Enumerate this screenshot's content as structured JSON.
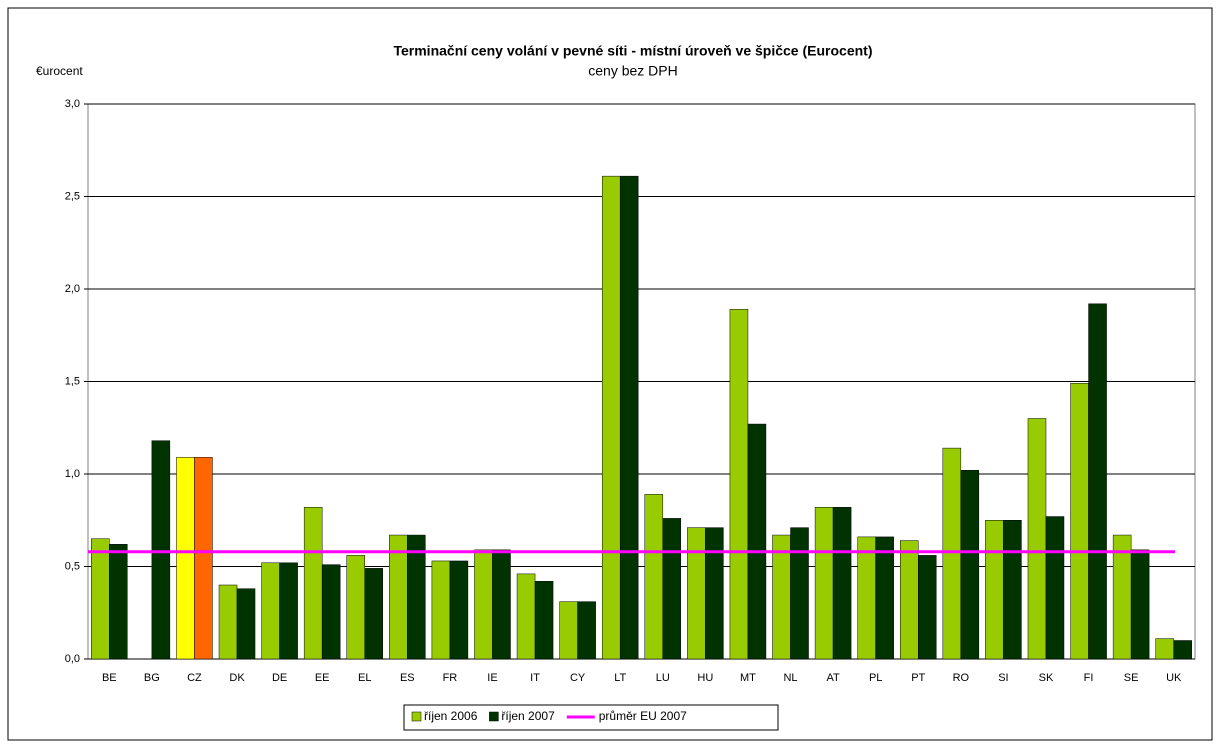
{
  "chart_data": {
    "type": "bar",
    "title": "Terminační ceny volání v pevné síti - místní úroveň ve špičce (Eurocent)",
    "subtitle": "ceny bez DPH",
    "y_label": "€urocent",
    "categories": [
      "BE",
      "BG",
      "CZ",
      "DK",
      "DE",
      "EE",
      "EL",
      "ES",
      "FR",
      "IE",
      "IT",
      "CY",
      "LT",
      "LU",
      "HU",
      "MT",
      "NL",
      "AT",
      "PL",
      "PT",
      "RO",
      "SI",
      "SK",
      "FI",
      "SE",
      "UK"
    ],
    "series": [
      {
        "name": "říjen 2006",
        "color": "#99cc00",
        "highlight_color": "#ffff00",
        "values": [
          0.65,
          null,
          1.09,
          0.4,
          0.52,
          0.82,
          0.56,
          0.67,
          0.53,
          0.59,
          0.46,
          0.31,
          2.61,
          0.89,
          0.71,
          1.89,
          0.67,
          0.82,
          0.66,
          0.64,
          1.14,
          0.75,
          1.3,
          1.49,
          0.67,
          0.11
        ]
      },
      {
        "name": "říjen 2007",
        "color": "#003300",
        "highlight_color": "#ff6600",
        "values": [
          0.62,
          1.18,
          1.09,
          0.38,
          0.52,
          0.51,
          0.49,
          0.67,
          0.53,
          0.59,
          0.42,
          0.31,
          2.61,
          0.76,
          0.71,
          1.27,
          0.71,
          0.82,
          0.66,
          0.56,
          1.02,
          0.75,
          0.77,
          1.92,
          0.59,
          0.1
        ]
      }
    ],
    "highlight_category": "CZ",
    "average": {
      "name": "průměr EU 2007",
      "value": 0.58,
      "color": "#ff00ff"
    },
    "ylim": [
      0,
      3
    ],
    "yticks": [
      {
        "value": 0,
        "label": "0,0"
      },
      {
        "value": 0.5,
        "label": "0,5"
      },
      {
        "value": 1,
        "label": "1,0"
      },
      {
        "value": 1.5,
        "label": "1,5"
      },
      {
        "value": 2,
        "label": "2,0"
      },
      {
        "value": 2.5,
        "label": "2,5"
      },
      {
        "value": 3,
        "label": "3,0"
      }
    ],
    "grid": true,
    "legend": "bottom"
  }
}
